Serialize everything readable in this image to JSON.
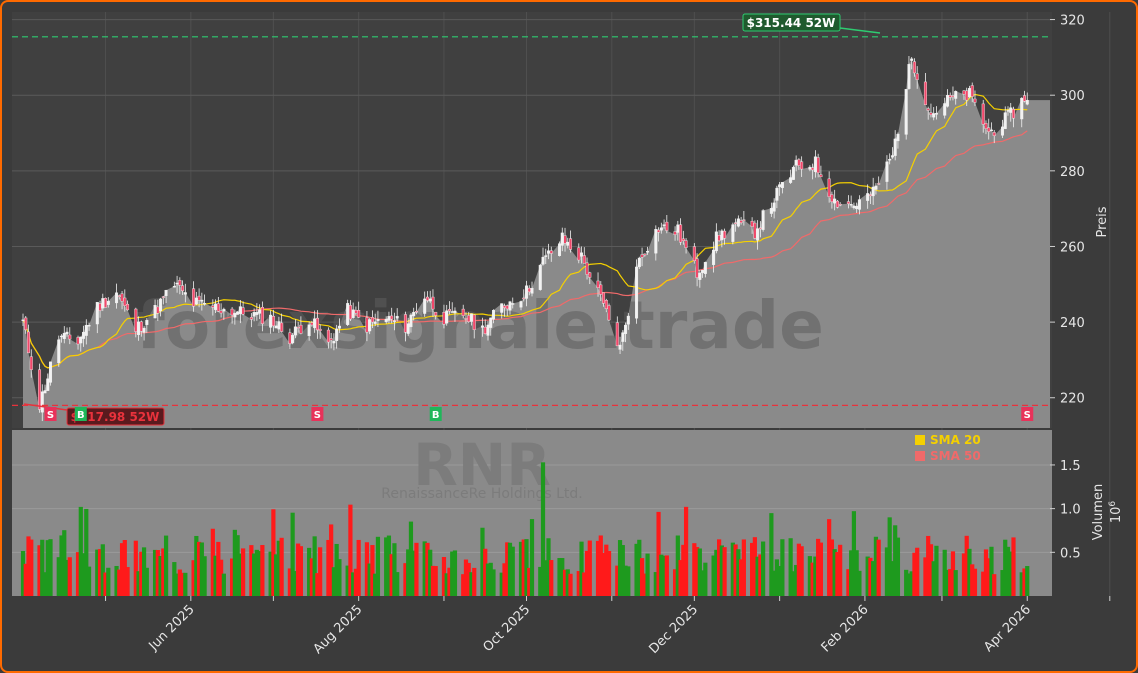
{
  "chart_data": {
    "type": "candlestick",
    "watermark_text": "forexsignale.trade",
    "ticker": "RNR",
    "company": "RenaissanceRe Holdings Ltd.",
    "x_ticks": [
      "Jun 2025",
      "Aug 2025",
      "Oct 2025",
      "Dec 2025",
      "Feb 2026",
      "Apr 2026"
    ],
    "price_axis": {
      "label": "Preis",
      "ticks": [
        220,
        240,
        260,
        280,
        300,
        320
      ],
      "ylim": [
        212,
        322
      ]
    },
    "volume_axis": {
      "label": "Volumen",
      "exponent": "10",
      "exponent_power": "6",
      "ticks": [
        "0.5",
        "1.0",
        "1.5"
      ],
      "tick_values": [
        0.5,
        1.0,
        1.5
      ],
      "ylim": [
        0,
        1.9
      ]
    },
    "high_52w": {
      "label": "$315.44 52W",
      "value": 315.44,
      "color": "#2ecc71"
    },
    "low_52w": {
      "label": "$217.98 52W",
      "value": 217.98,
      "color": "#e8323c"
    },
    "legend": [
      {
        "name": "SMA 20",
        "color": "#f5d000"
      },
      {
        "name": "SMA 50",
        "color": "#f06a6a"
      }
    ],
    "signals": [
      {
        "label": "S",
        "type": "sell",
        "date": "2025-04-11"
      },
      {
        "label": "B",
        "type": "buy",
        "date": "2025-04-22"
      },
      {
        "label": "S",
        "type": "sell",
        "date": "2025-07-17"
      },
      {
        "label": "B",
        "type": "buy",
        "date": "2025-08-29"
      },
      {
        "label": "S",
        "type": "sell",
        "date": "2026-04-01"
      }
    ],
    "price_keypoints": [
      [
        "2025-04-01",
        240
      ],
      [
        "2025-04-07",
        218
      ],
      [
        "2025-04-14",
        236
      ],
      [
        "2025-04-21",
        235
      ],
      [
        "2025-04-28",
        244
      ],
      [
        "2025-05-05",
        248
      ],
      [
        "2025-05-12",
        238
      ],
      [
        "2025-05-19",
        243
      ],
      [
        "2025-05-26",
        250
      ],
      [
        "2025-06-02",
        245
      ],
      [
        "2025-06-09",
        244
      ],
      [
        "2025-06-16",
        243
      ],
      [
        "2025-06-23",
        242
      ],
      [
        "2025-06-30",
        241
      ],
      [
        "2025-07-07",
        236
      ],
      [
        "2025-07-14",
        241
      ],
      [
        "2025-07-21",
        234
      ],
      [
        "2025-07-28",
        243
      ],
      [
        "2025-08-04",
        239
      ],
      [
        "2025-08-11",
        241
      ],
      [
        "2025-08-18",
        239
      ],
      [
        "2025-08-25",
        247
      ],
      [
        "2025-09-01",
        241
      ],
      [
        "2025-09-08",
        242
      ],
      [
        "2025-09-15",
        238
      ],
      [
        "2025-09-22",
        244
      ],
      [
        "2025-10-01",
        248
      ],
      [
        "2025-10-07",
        256
      ],
      [
        "2025-10-14",
        262
      ],
      [
        "2025-10-21",
        257
      ],
      [
        "2025-10-28",
        246
      ],
      [
        "2025-11-04",
        233
      ],
      [
        "2025-11-11",
        257
      ],
      [
        "2025-11-18",
        265
      ],
      [
        "2025-11-25",
        264
      ],
      [
        "2025-12-02",
        253
      ],
      [
        "2025-12-09",
        262
      ],
      [
        "2025-12-16",
        266
      ],
      [
        "2025-12-23",
        264
      ],
      [
        "2026-01-01",
        275
      ],
      [
        "2026-01-07",
        281
      ],
      [
        "2026-01-14",
        282
      ],
      [
        "2026-01-21",
        272
      ],
      [
        "2026-01-28",
        271
      ],
      [
        "2026-02-04",
        274
      ],
      [
        "2026-02-11",
        284
      ],
      [
        "2026-02-18",
        310
      ],
      [
        "2026-02-25",
        295
      ],
      [
        "2026-03-04",
        299
      ],
      [
        "2026-03-11",
        300
      ],
      [
        "2026-03-18",
        290
      ],
      [
        "2026-03-25",
        294
      ],
      [
        "2026-04-01",
        300
      ]
    ]
  }
}
